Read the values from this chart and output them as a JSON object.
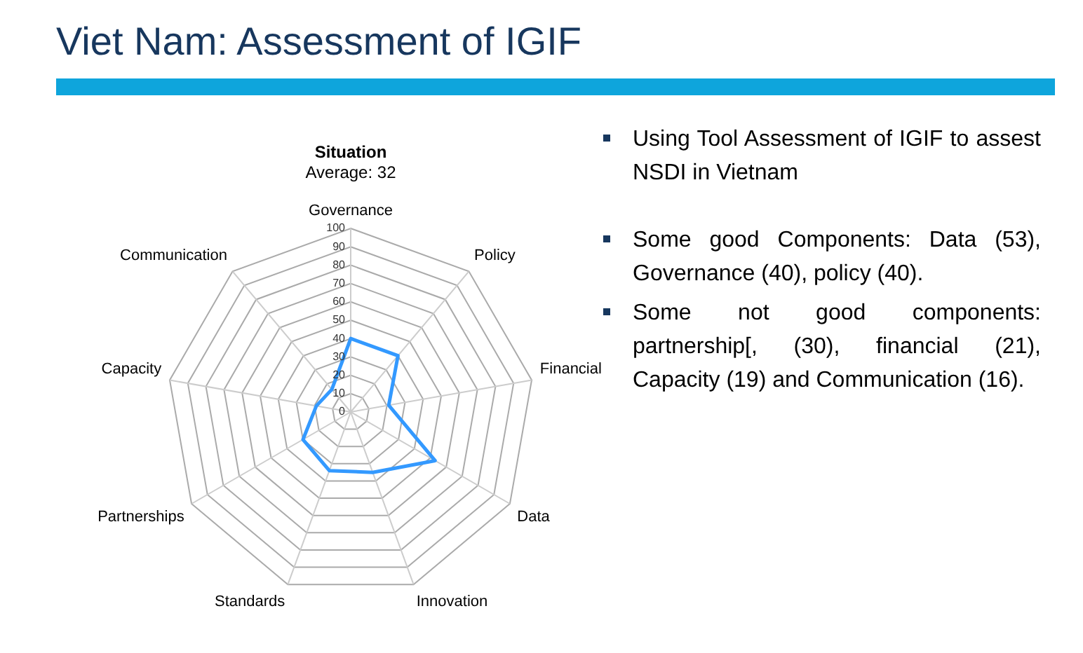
{
  "chart_data": {
    "type": "radar",
    "title": "Situation",
    "subtitle": "Average: 32",
    "annotations": [
      "Viet Nam: Assessment of IGIF",
      "Using Tool Assessment of IGIF to assest NSDI in Vietnam",
      "Some good Components: Data (53), Governance (40), policy (40).",
      "Some not good components: partnership[, (30), financial (21), Capacity (19) and Communication (16)."
    ],
    "categories": [
      "Governance",
      "Policy",
      "Financial",
      "Data",
      "Innovation",
      "Standards",
      "Partnerships",
      "Capacity",
      "Communication"
    ],
    "series": [
      {
        "color": "#3399ff",
        "values": [
          40,
          40,
          21,
          53,
          35,
          34,
          30,
          19,
          16
        ]
      }
    ],
    "ylim": [
      0,
      100
    ],
    "yticks": [
      0,
      10,
      20,
      30,
      40,
      50,
      60,
      70,
      80,
      90,
      100
    ],
    "grid": true,
    "marker": "none",
    "legend": false
  }
}
